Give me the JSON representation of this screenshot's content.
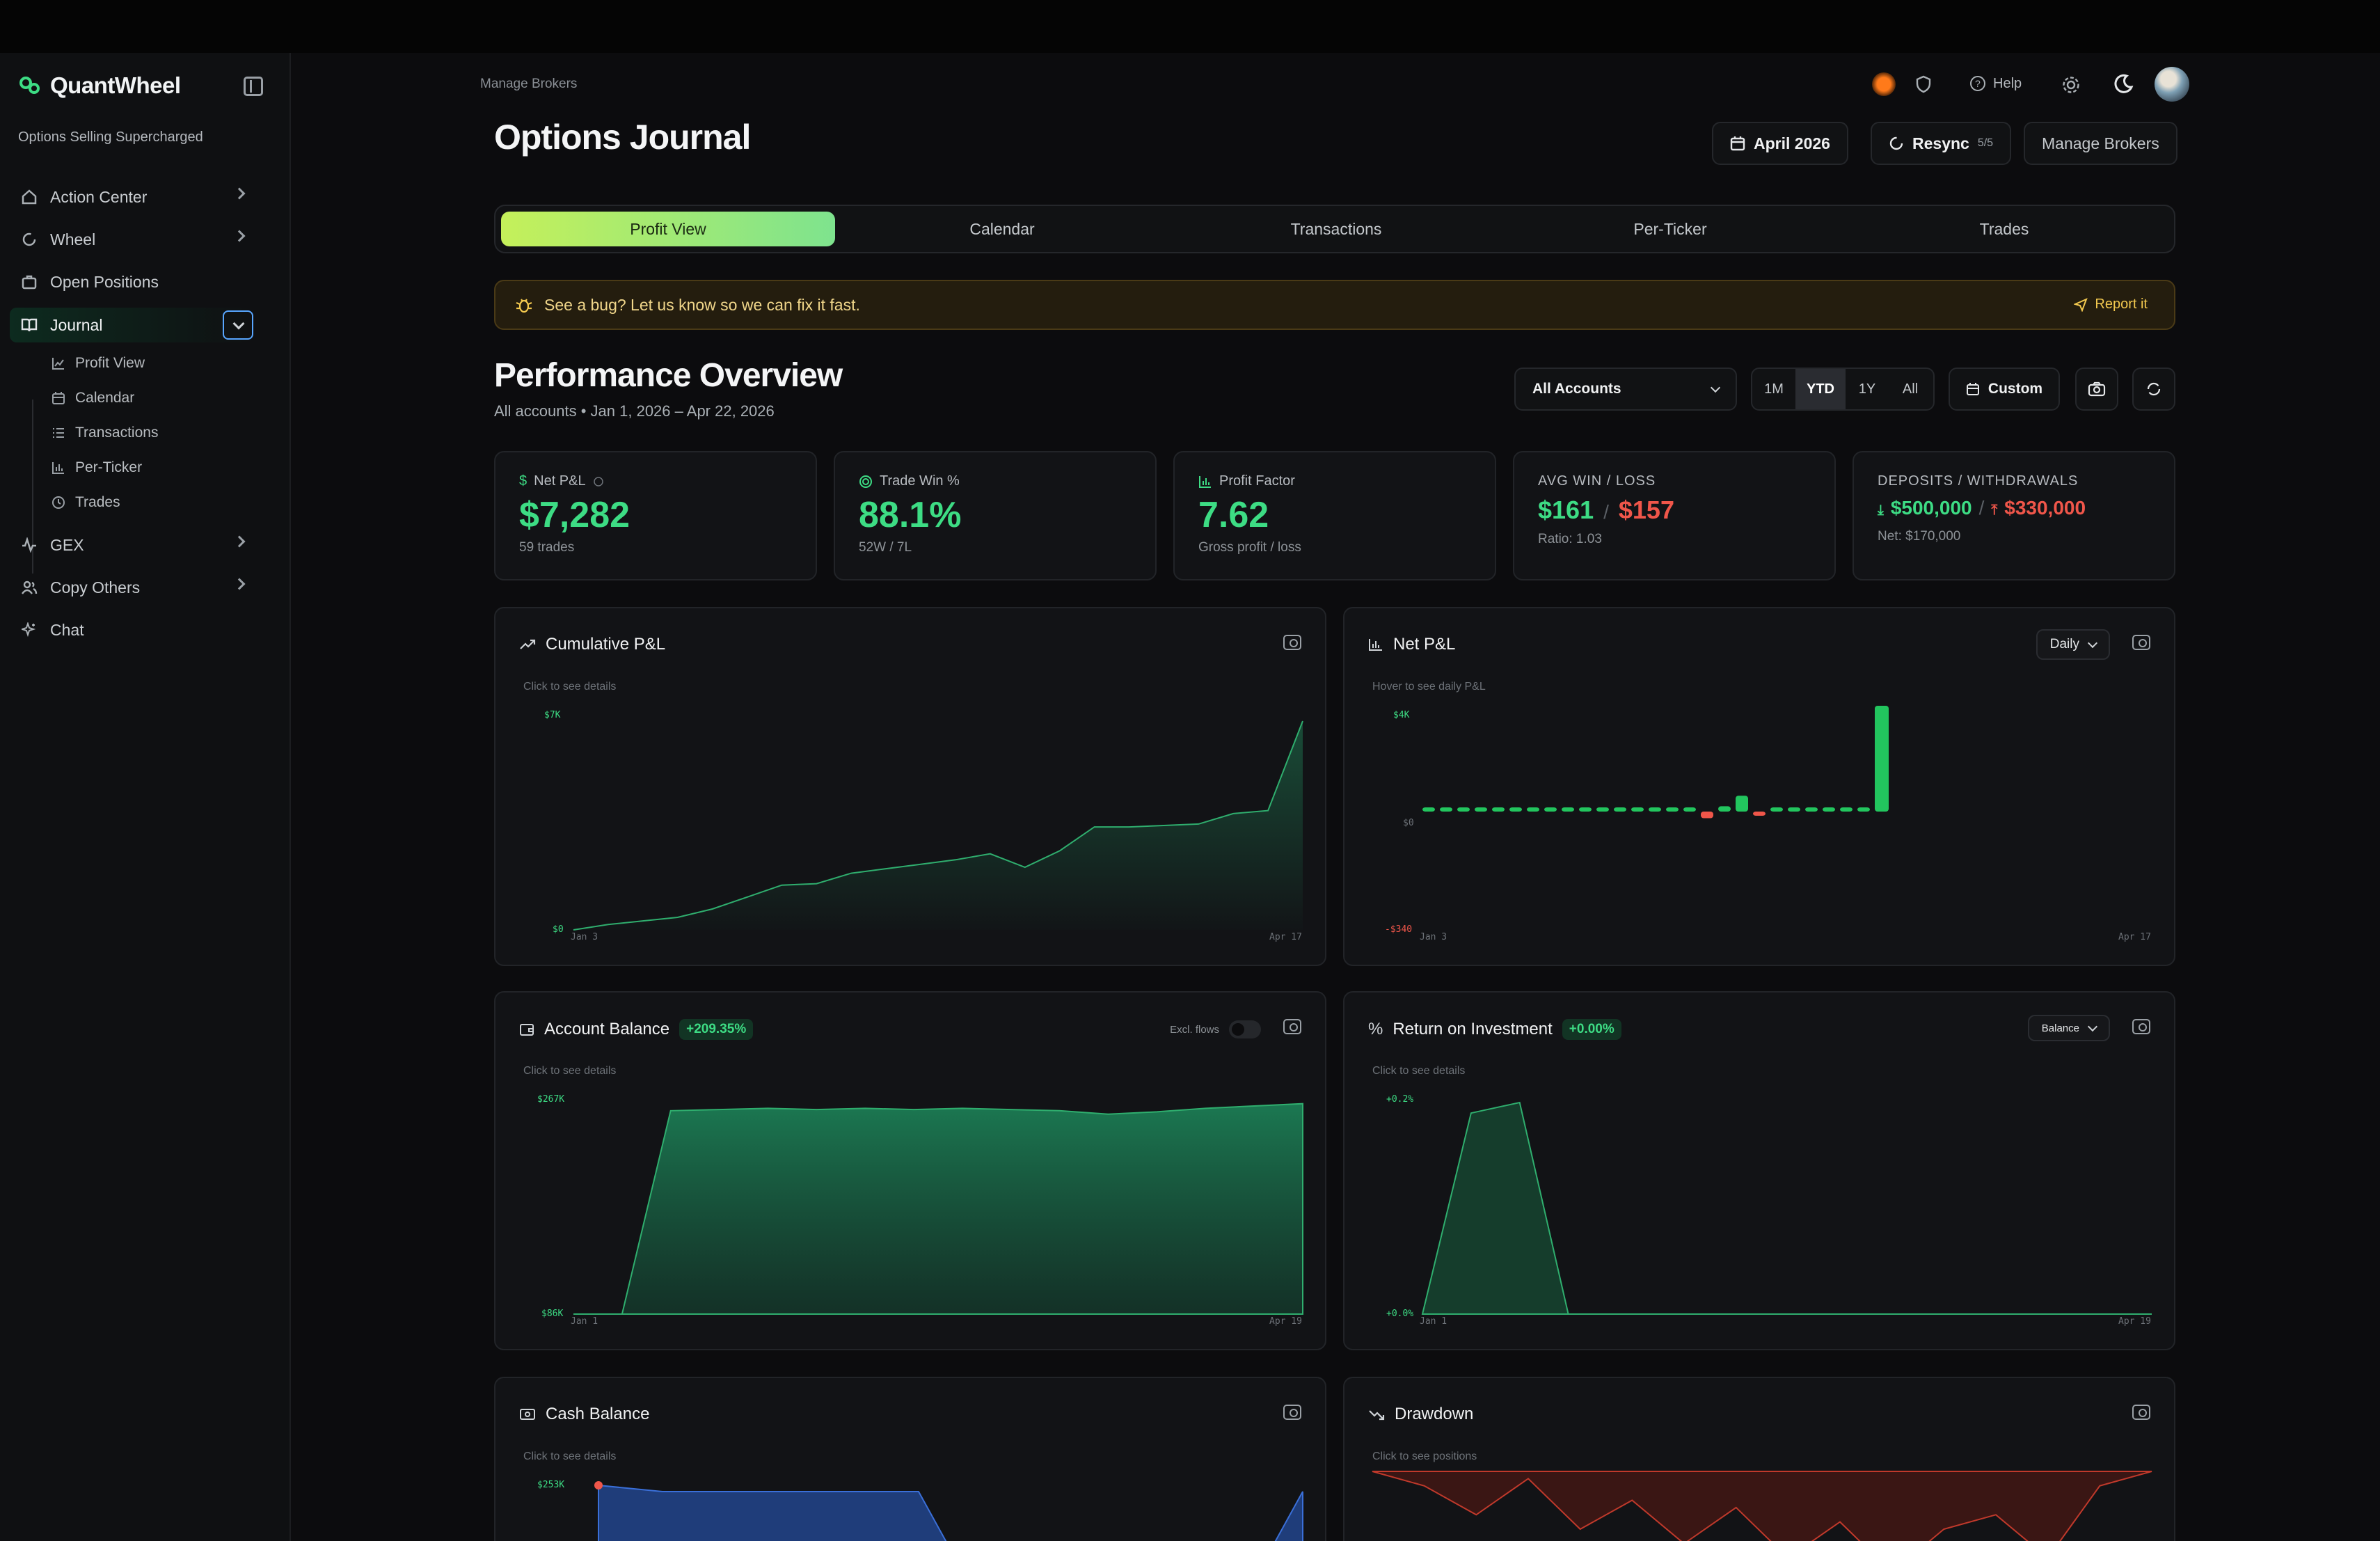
{
  "app": {
    "name": "QuantWheel",
    "tagline": "Options Selling Supercharged"
  },
  "sidebar": {
    "items": [
      {
        "label": "Action Center",
        "icon": "home-icon"
      },
      {
        "label": "Wheel",
        "icon": "refresh-icon"
      },
      {
        "label": "Open Positions",
        "icon": "briefcase-icon"
      },
      {
        "label": "Journal",
        "icon": "book-icon"
      },
      {
        "label": "GEX",
        "icon": "activity-icon"
      },
      {
        "label": "Copy Others",
        "icon": "users-icon"
      },
      {
        "label": "Chat",
        "icon": "sparkle-icon"
      }
    ],
    "journal_sub": [
      {
        "label": "Profit View",
        "icon": "line-chart-icon"
      },
      {
        "label": "Calendar",
        "icon": "calendar-icon"
      },
      {
        "label": "Transactions",
        "icon": "list-icon"
      },
      {
        "label": "Per-Ticker",
        "icon": "bar-chart-icon"
      },
      {
        "label": "Trades",
        "icon": "history-icon"
      }
    ]
  },
  "header": {
    "breadcrumb": "Manage Brokers",
    "title": "Options Journal",
    "help": "Help",
    "month_label": "April 2026",
    "resync_label": "Resync",
    "resync_count": "5/5",
    "manage_brokers": "Manage Brokers"
  },
  "tabs": [
    "Profit View",
    "Calendar",
    "Transactions",
    "Per-Ticker",
    "Trades"
  ],
  "banner": {
    "text": "See a bug? Let us know so we can fix it fast.",
    "action": "Report it"
  },
  "overview": {
    "title": "Performance Overview",
    "subtitle": "All accounts • Jan 1, 2026 – Apr 22, 2026",
    "account_select": "All Accounts",
    "ranges": [
      "1M",
      "YTD",
      "1Y",
      "All"
    ],
    "active_range": "YTD",
    "custom": "Custom"
  },
  "stats": {
    "net_pnl": {
      "label": "Net P&L",
      "value": "$7,282",
      "sub": "59 trades"
    },
    "win_rate": {
      "label": "Trade Win %",
      "value": "88.1%",
      "sub": "52W / 7L"
    },
    "profit_factor": {
      "label": "Profit Factor",
      "value": "7.62",
      "sub": "Gross profit / loss"
    },
    "avg_win_loss": {
      "label": "AVG WIN / LOSS",
      "win": "$161",
      "sep": "/",
      "loss": "$157",
      "sub": "Ratio: 1.03"
    },
    "deposits": {
      "label": "DEPOSITS / WITHDRAWALS",
      "deposits": "$500,000",
      "sep": "/",
      "withdrawals": "$330,000",
      "sub": "Net: $170,000"
    }
  },
  "charts": {
    "cumulative": {
      "title": "Cumulative P&L",
      "hint": "Click to see details",
      "ymax": "$7K",
      "ymin": "$0",
      "xstart": "Jan 3",
      "xend": "Apr 17"
    },
    "net_pnl": {
      "title": "Net P&L",
      "hint": "Hover to see daily P&L",
      "period": "Daily",
      "ymax": "$4K",
      "yzero": "$0",
      "ymin": "-$340",
      "xstart": "Jan 3",
      "xend": "Apr 17"
    },
    "balance": {
      "title": "Account Balance",
      "badge": "+209.35%",
      "toggle": "Excl. flows",
      "hint": "Click to see details",
      "ymax": "$267K",
      "ymin": "$86K",
      "xstart": "Jan 1",
      "xend": "Apr 19"
    },
    "roi": {
      "title": "Return on Investment",
      "badge": "+0.00%",
      "mode": "Balance",
      "hint": "Click to see details",
      "ymax": "+0.2%",
      "ymin": "+0.0%",
      "xstart": "Jan 1",
      "xend": "Apr 19"
    },
    "cash": {
      "title": "Cash Balance",
      "hint": "Click to see details",
      "ymax": "$253K"
    },
    "drawdown": {
      "title": "Drawdown",
      "hint": "Click to see positions"
    }
  },
  "chart_data": [
    {
      "type": "area",
      "title": "Cumulative P&L",
      "xlabel": "",
      "ylabel": "",
      "x_range": [
        "Jan 3",
        "Apr 17"
      ],
      "ylim": [
        0,
        7000
      ],
      "values": [
        0,
        180,
        300,
        420,
        700,
        1100,
        1500,
        1550,
        1900,
        2050,
        2200,
        2350,
        2550,
        2100,
        2650,
        3450,
        3450,
        3500,
        3550,
        3900,
        4000,
        7000
      ]
    },
    {
      "type": "bar",
      "title": "Net P&L",
      "x_range": [
        "Jan 3",
        "Apr 17"
      ],
      "ylim": [
        -340,
        4000
      ],
      "values": [
        30,
        40,
        50,
        40,
        60,
        60,
        70,
        50,
        60,
        40,
        50,
        30,
        40,
        30,
        40,
        20,
        -250,
        200,
        600,
        -120,
        50,
        60,
        70,
        60,
        120,
        30,
        4000
      ]
    },
    {
      "type": "area",
      "title": "Account Balance",
      "x_range": [
        "Jan 1",
        "Apr 19"
      ],
      "ylim": [
        86000,
        267000
      ],
      "values": [
        86000,
        86000,
        260000,
        261000,
        262000,
        261000,
        262000,
        261000,
        262000,
        261000,
        260000,
        257000,
        259000,
        262000,
        264000,
        266000
      ]
    },
    {
      "type": "area",
      "title": "Return on Investment",
      "x_range": [
        "Jan 1",
        "Apr 19"
      ],
      "ylim": [
        0,
        0.2
      ],
      "values": [
        0,
        0.19,
        0.2,
        0,
        0,
        0,
        0,
        0,
        0,
        0,
        0,
        0,
        0,
        0,
        0,
        0
      ]
    },
    {
      "type": "area",
      "title": "Cash Balance",
      "ylim": [
        0,
        253000
      ],
      "values": [
        253000,
        240000,
        240000,
        240000,
        240000,
        240000,
        0,
        0,
        0,
        0,
        0,
        240000
      ]
    },
    {
      "type": "area",
      "title": "Drawdown",
      "values": [
        0,
        -10,
        -30,
        -5,
        -40,
        -20,
        -50,
        -25,
        -60,
        -35,
        -70,
        -40,
        -30,
        -60,
        -10,
        0
      ]
    }
  ],
  "colors": {
    "accent": "#3ddc84",
    "negative": "#f0564a",
    "warning": "#f3c94f"
  }
}
